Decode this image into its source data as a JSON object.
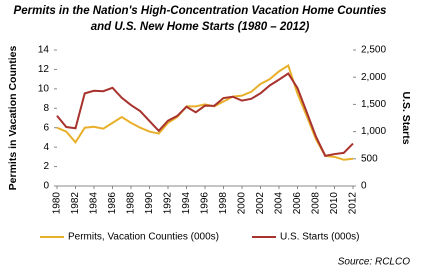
{
  "chart_data": {
    "type": "line",
    "title": [
      "Permits in the Nation's High-Concentration Vacation Home Counties",
      "and U.S. New Home Starts (1980 – 2012)"
    ],
    "ylabel": "Permits in Vacation Counties",
    "y2label": "U.S. Starts",
    "source": "Source: RCLCO",
    "x": [
      1980,
      1981,
      1982,
      1983,
      1984,
      1985,
      1986,
      1987,
      1988,
      1989,
      1990,
      1991,
      1992,
      1993,
      1994,
      1995,
      1996,
      1997,
      1998,
      1999,
      2000,
      2001,
      2002,
      2003,
      2004,
      2005,
      2006,
      2007,
      2008,
      2009,
      2010,
      2011,
      2012
    ],
    "xlim": [
      1980,
      2012
    ],
    "xticks": [
      1980,
      1982,
      1984,
      1986,
      1988,
      1990,
      1992,
      1994,
      1996,
      1998,
      2000,
      2002,
      2004,
      2006,
      2008,
      2010,
      2012
    ],
    "ylim": [
      0,
      14
    ],
    "yticks": [
      0,
      2,
      4,
      6,
      8,
      10,
      12,
      14
    ],
    "y2lim": [
      0,
      2500
    ],
    "y2ticks": [
      0,
      500,
      {
        "value": 1000,
        "label": "1,000"
      },
      {
        "value": 1500,
        "label": "1,500"
      },
      {
        "value": 2000,
        "label": "2,000"
      },
      {
        "value": 2500,
        "label": "2,500"
      }
    ],
    "legend": "bottom",
    "series": [
      {
        "name": "Permits, Vacation Counties (000s)",
        "color": "#e8b02a",
        "values": [
          6.0,
          5.6,
          4.5,
          6.0,
          6.1,
          5.9,
          6.5,
          7.1,
          6.5,
          6.0,
          5.6,
          5.4,
          6.5,
          7.1,
          8.2,
          8.2,
          8.4,
          8.2,
          8.7,
          9.2,
          9.3,
          9.7,
          10.5,
          11.0,
          11.8,
          12.4,
          9.5,
          7.2,
          4.8,
          3.1,
          3.0,
          2.7,
          2.8
        ]
      },
      {
        "name": "U.S. Starts (000s)",
        "color": "#a8322d",
        "axis": "y2",
        "values": [
          1292,
          1084,
          1062,
          1703,
          1750,
          1742,
          1805,
          1621,
          1488,
          1376,
          1193,
          1014,
          1200,
          1288,
          1457,
          1354,
          1477,
          1474,
          1617,
          1641,
          1569,
          1603,
          1705,
          1848,
          1956,
          2068,
          1801,
          1355,
          906,
          554,
          587,
          609,
          780
        ]
      }
    ]
  }
}
